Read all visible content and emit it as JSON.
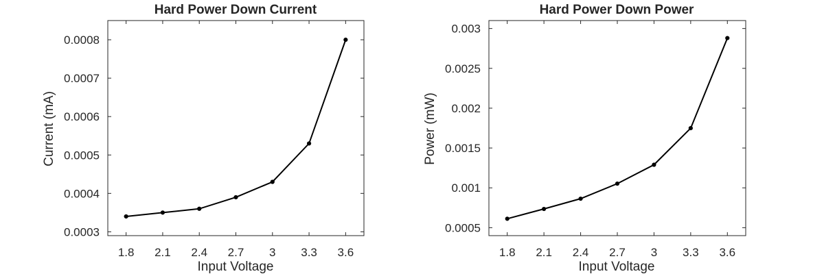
{
  "colors": {
    "series": "#000000",
    "axis": "#262626",
    "background": "#ffffff"
  },
  "chart_data": [
    {
      "type": "line",
      "title": "Hard Power Down Current",
      "xlabel": "Input Voltage",
      "ylabel": "Current (mA)",
      "xlim": [
        1.65,
        3.75
      ],
      "ylim": [
        0.00029,
        0.00085
      ],
      "xticks": [
        1.8,
        2.1,
        2.4,
        2.7,
        3.0,
        3.3,
        3.6
      ],
      "xtick_labels": [
        "1.8",
        "2.1",
        "2.4",
        "2.7",
        "3",
        "3.3",
        "3.6"
      ],
      "yticks": [
        0.0003,
        0.0004,
        0.0005,
        0.0006,
        0.0007,
        0.0008
      ],
      "ytick_labels": [
        "0.0003",
        "0.0004",
        "0.0005",
        "0.0006",
        "0.0007",
        "0.0008"
      ],
      "grid": false,
      "series": [
        {
          "x": [
            1.8,
            2.1,
            2.4,
            2.7,
            3.0,
            3.3,
            3.6
          ],
          "values": [
            0.00034,
            0.00035,
            0.00036,
            0.00039,
            0.00043,
            0.00053,
            0.0008
          ]
        }
      ]
    },
    {
      "type": "line",
      "title": "Hard Power Down Power",
      "xlabel": "Input Voltage",
      "ylabel": "Power (mW)",
      "xlim": [
        1.65,
        3.75
      ],
      "ylim": [
        0.0004,
        0.0031
      ],
      "xticks": [
        1.8,
        2.1,
        2.4,
        2.7,
        3.0,
        3.3,
        3.6
      ],
      "xtick_labels": [
        "1.8",
        "2.1",
        "2.4",
        "2.7",
        "3",
        "3.3",
        "3.6"
      ],
      "yticks": [
        0.0005,
        0.001,
        0.0015,
        0.002,
        0.0025,
        0.003
      ],
      "ytick_labels": [
        "0.0005",
        "0.001",
        "0.0015",
        "0.002",
        "0.0025",
        "0.003"
      ],
      "grid": false,
      "series": [
        {
          "x": [
            1.8,
            2.1,
            2.4,
            2.7,
            3.0,
            3.3,
            3.6
          ],
          "values": [
            0.000612,
            0.000735,
            0.000864,
            0.001053,
            0.00129,
            0.001749,
            0.00288
          ]
        }
      ]
    }
  ]
}
